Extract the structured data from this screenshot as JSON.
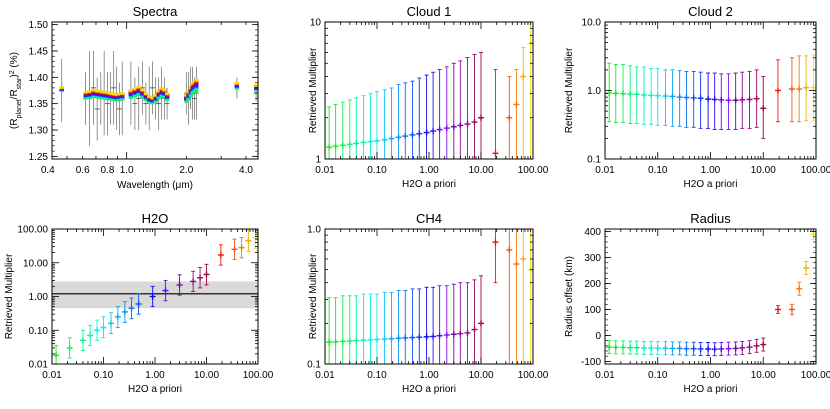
{
  "figure": {
    "colors": {
      "axis": "#000000",
      "gray_band": "#d9d9d9",
      "spectra_errbar": "#7a7a7a"
    }
  },
  "chart_data": [
    {
      "id": "spectra",
      "type": "scatter",
      "title": "Spectra",
      "xlabel_main": "Wavelength (",
      "xlabel_mu": "μ",
      "xlabel_end": "m)",
      "ylabel_parts": [
        "(R",
        "planet",
        "/R",
        "star",
        ")",
        "2",
        " (%)"
      ],
      "xscale": "log",
      "xlim": [
        0.42,
        4.6
      ],
      "ylim": [
        1.245,
        1.505
      ],
      "xticks": [
        {
          "v": 0.4,
          "label": "0.4"
        },
        {
          "v": 0.6,
          "label": "0.6"
        },
        {
          "v": 0.8,
          "label": "0.8"
        },
        {
          "v": 1.0,
          "label": "1.0"
        },
        {
          "v": 2.0,
          "label": "2.0"
        },
        {
          "v": 4.0,
          "label": "4.0"
        }
      ],
      "yticks": [
        {
          "v": 1.25,
          "label": "1.25"
        },
        {
          "v": 1.3,
          "label": "1.30"
        },
        {
          "v": 1.35,
          "label": "1.35"
        },
        {
          "v": 1.4,
          "label": "1.40"
        },
        {
          "v": 1.45,
          "label": "1.45"
        },
        {
          "v": 1.5,
          "label": "1.50"
        }
      ],
      "observed_points": [
        {
          "x": 0.47,
          "y": 1.375,
          "err": 0.06
        },
        {
          "x": 0.62,
          "y": 1.36,
          "err": 0.05
        },
        {
          "x": 0.65,
          "y": 1.36,
          "err": 0.09
        },
        {
          "x": 0.68,
          "y": 1.38,
          "err": 0.07
        },
        {
          "x": 0.71,
          "y": 1.34,
          "err": 0.06
        },
        {
          "x": 0.74,
          "y": 1.36,
          "err": 0.05
        },
        {
          "x": 0.77,
          "y": 1.37,
          "err": 0.08
        },
        {
          "x": 0.8,
          "y": 1.35,
          "err": 0.06
        },
        {
          "x": 0.83,
          "y": 1.36,
          "err": 0.05
        },
        {
          "x": 0.86,
          "y": 1.38,
          "err": 0.07
        },
        {
          "x": 0.89,
          "y": 1.36,
          "err": 0.06
        },
        {
          "x": 0.92,
          "y": 1.34,
          "err": 0.05
        },
        {
          "x": 0.95,
          "y": 1.36,
          "err": 0.07
        },
        {
          "x": 1.05,
          "y": 1.37,
          "err": 0.06
        },
        {
          "x": 1.1,
          "y": 1.35,
          "err": 0.05
        },
        {
          "x": 1.15,
          "y": 1.36,
          "err": 0.06
        },
        {
          "x": 1.2,
          "y": 1.38,
          "err": 0.05
        },
        {
          "x": 1.25,
          "y": 1.35,
          "err": 0.04
        },
        {
          "x": 1.3,
          "y": 1.36,
          "err": 0.06
        },
        {
          "x": 1.35,
          "y": 1.38,
          "err": 0.05
        },
        {
          "x": 1.4,
          "y": 1.36,
          "err": 0.04
        },
        {
          "x": 1.45,
          "y": 1.35,
          "err": 0.05
        },
        {
          "x": 1.5,
          "y": 1.37,
          "err": 0.05
        },
        {
          "x": 1.55,
          "y": 1.36,
          "err": 0.04
        },
        {
          "x": 1.6,
          "y": 1.35,
          "err": 0.03
        },
        {
          "x": 2.0,
          "y": 1.37,
          "err": 0.04
        },
        {
          "x": 2.05,
          "y": 1.36,
          "err": 0.05
        },
        {
          "x": 2.1,
          "y": 1.38,
          "err": 0.04
        },
        {
          "x": 2.15,
          "y": 1.37,
          "err": 0.05
        },
        {
          "x": 2.2,
          "y": 1.36,
          "err": 0.04
        },
        {
          "x": 2.25,
          "y": 1.37,
          "err": 0.05
        },
        {
          "x": 3.6,
          "y": 1.38,
          "err": 0.02
        },
        {
          "x": 4.5,
          "y": 1.37,
          "err": 0.015
        }
      ],
      "model_x": [
        0.47,
        0.62,
        0.65,
        0.68,
        0.71,
        0.74,
        0.77,
        0.8,
        0.83,
        0.86,
        0.89,
        0.92,
        0.95,
        1.05,
        1.1,
        1.15,
        1.2,
        1.25,
        1.3,
        1.35,
        1.4,
        1.45,
        1.5,
        1.55,
        1.6,
        2.0,
        2.05,
        2.1,
        2.15,
        2.2,
        2.25,
        3.6,
        4.5
      ],
      "model_base": [
        1.377,
        1.365,
        1.366,
        1.368,
        1.367,
        1.366,
        1.365,
        1.364,
        1.363,
        1.362,
        1.361,
        1.362,
        1.363,
        1.367,
        1.37,
        1.373,
        1.368,
        1.362,
        1.357,
        1.355,
        1.359,
        1.366,
        1.37,
        1.368,
        1.362,
        1.359,
        1.364,
        1.371,
        1.377,
        1.38,
        1.383,
        1.383,
        1.379
      ],
      "model_amp": [
        0.006,
        0.012,
        0.012,
        0.013,
        0.012,
        0.012,
        0.012,
        0.012,
        0.011,
        0.011,
        0.011,
        0.011,
        0.011,
        0.014,
        0.014,
        0.015,
        0.014,
        0.012,
        0.011,
        0.01,
        0.012,
        0.014,
        0.016,
        0.014,
        0.012,
        0.012,
        0.014,
        0.016,
        0.018,
        0.019,
        0.02,
        0.01,
        0.01
      ]
    },
    {
      "id": "cloud1",
      "type": "scatter",
      "title": "Cloud 1",
      "xlabel": "H2O a priori",
      "ylabel": "Retrieved Multiplier",
      "xscale": "log",
      "yscale": "log",
      "xlim": [
        0.01,
        100
      ],
      "ylim": [
        1,
        10
      ],
      "xticks": [
        {
          "v": 0.01,
          "label": "0.01"
        },
        {
          "v": 0.1,
          "label": "0.10"
        },
        {
          "v": 1,
          "label": "1.00"
        },
        {
          "v": 10,
          "label": "10.00"
        },
        {
          "v": 100,
          "label": "100.00"
        }
      ],
      "yticks": [
        {
          "v": 1,
          "label": "1"
        },
        {
          "v": 10,
          "label": "10"
        }
      ],
      "x": [
        0.012,
        0.016,
        0.022,
        0.03,
        0.04,
        0.055,
        0.075,
        0.1,
        0.14,
        0.19,
        0.26,
        0.35,
        0.48,
        0.65,
        0.9,
        1.2,
        1.6,
        2.2,
        3.0,
        4.0,
        5.5,
        7.5,
        10,
        14,
        19,
        26,
        35,
        48,
        65,
        90
      ],
      "y": [
        1.22,
        1.24,
        1.26,
        1.28,
        1.3,
        1.32,
        1.34,
        1.36,
        1.38,
        1.41,
        1.44,
        1.47,
        1.5,
        1.53,
        1.56,
        1.6,
        1.64,
        1.68,
        1.72,
        1.76,
        1.8,
        1.86,
        2.0,
        null,
        1.1,
        null,
        2.0,
        2.5,
        4.0,
        7.0
      ],
      "upper": [
        2.4,
        2.5,
        2.6,
        2.7,
        2.8,
        2.9,
        3.0,
        3.1,
        3.2,
        3.3,
        3.5,
        3.6,
        3.7,
        3.9,
        4.1,
        4.3,
        4.5,
        4.7,
        5.0,
        5.2,
        5.5,
        5.8,
        6.0,
        null,
        4.5,
        null,
        4.0,
        4.5,
        6.5,
        10.5
      ],
      "lower": [
        1.0,
        1.0,
        1.0,
        1.0,
        1.0,
        1.0,
        1.0,
        1.0,
        1.0,
        1.0,
        1.0,
        1.0,
        1.0,
        1.0,
        1.0,
        1.0,
        1.0,
        1.0,
        1.0,
        1.0,
        1.0,
        1.0,
        1.0,
        null,
        1.0,
        null,
        1.0,
        1.0,
        1.0,
        1.0
      ]
    },
    {
      "id": "cloud2",
      "type": "scatter",
      "title": "Cloud 2",
      "xlabel": "H2O a priori",
      "ylabel": "Retrieved Multiplier",
      "xscale": "log",
      "yscale": "log",
      "xlim": [
        0.01,
        100
      ],
      "ylim": [
        0.1,
        10
      ],
      "xticks": [
        {
          "v": 0.01,
          "label": "0.01"
        },
        {
          "v": 0.1,
          "label": "0.10"
        },
        {
          "v": 1,
          "label": "1.00"
        },
        {
          "v": 10,
          "label": "10.00"
        },
        {
          "v": 100,
          "label": "100.00"
        }
      ],
      "yticks": [
        {
          "v": 0.1,
          "label": "0.1"
        },
        {
          "v": 1,
          "label": "1.0"
        },
        {
          "v": 10,
          "label": "10.0"
        }
      ],
      "x": [
        0.012,
        0.016,
        0.022,
        0.03,
        0.04,
        0.055,
        0.075,
        0.1,
        0.14,
        0.19,
        0.26,
        0.35,
        0.48,
        0.65,
        0.9,
        1.2,
        1.6,
        2.2,
        3.0,
        4.0,
        5.5,
        7.5,
        10,
        14,
        19,
        26,
        35,
        48,
        65,
        90
      ],
      "y": [
        0.92,
        0.91,
        0.9,
        0.89,
        0.88,
        0.86,
        0.85,
        0.84,
        0.83,
        0.82,
        0.8,
        0.79,
        0.78,
        0.77,
        0.75,
        0.74,
        0.73,
        0.72,
        0.72,
        0.73,
        0.74,
        0.76,
        0.55,
        null,
        1.0,
        null,
        1.05,
        1.05,
        1.1,
        1.1
      ],
      "upper": [
        2.5,
        2.4,
        2.4,
        2.3,
        2.2,
        2.2,
        2.1,
        2.1,
        2.0,
        2.0,
        1.95,
        1.9,
        1.9,
        1.85,
        1.8,
        1.8,
        1.75,
        1.75,
        1.8,
        1.85,
        1.9,
        2.0,
        1.6,
        null,
        2.8,
        null,
        3.0,
        3.2,
        3.2,
        3.3
      ],
      "lower": [
        0.35,
        0.34,
        0.34,
        0.33,
        0.33,
        0.32,
        0.32,
        0.31,
        0.31,
        0.3,
        0.3,
        0.29,
        0.29,
        0.28,
        0.28,
        0.27,
        0.27,
        0.27,
        0.27,
        0.28,
        0.28,
        0.29,
        0.2,
        null,
        0.35,
        null,
        0.35,
        0.35,
        0.36,
        0.36
      ]
    },
    {
      "id": "h2o",
      "type": "scatter",
      "title": "H2O",
      "xlabel": "H2O a priori",
      "ylabel": "Retrieved Multiplier",
      "xscale": "log",
      "yscale": "log",
      "xlim": [
        0.01,
        100
      ],
      "ylim": [
        0.01,
        100
      ],
      "xticks": [
        {
          "v": 0.01,
          "label": "0.01"
        },
        {
          "v": 0.1,
          "label": "0.10"
        },
        {
          "v": 1,
          "label": "1.00"
        },
        {
          "v": 10,
          "label": "10.00"
        },
        {
          "v": 100,
          "label": "100.00"
        }
      ],
      "yticks": [
        {
          "v": 0.01,
          "label": "0.01"
        },
        {
          "v": 0.1,
          "label": "0.10"
        },
        {
          "v": 1,
          "label": "1.00"
        },
        {
          "v": 10,
          "label": "10.00"
        },
        {
          "v": 100,
          "label": "100.00"
        }
      ],
      "reference_line": 1.2,
      "band": [
        0.45,
        2.8
      ],
      "x": [
        0.012,
        0.016,
        0.022,
        0.03,
        0.04,
        0.055,
        0.075,
        0.1,
        0.14,
        0.19,
        0.26,
        0.35,
        0.48,
        0.65,
        0.9,
        1.2,
        1.6,
        2.2,
        3.0,
        4.0,
        5.5,
        7.5,
        10,
        14,
        19,
        26,
        35,
        48,
        65,
        90
      ],
      "y": [
        0.018,
        null,
        0.03,
        null,
        0.05,
        0.07,
        0.1,
        0.12,
        0.16,
        0.25,
        0.35,
        0.45,
        0.6,
        null,
        1.0,
        null,
        1.5,
        null,
        2.2,
        null,
        2.8,
        3.6,
        4.5,
        null,
        17,
        null,
        25,
        28,
        45,
        55
      ],
      "upper": [
        0.035,
        null,
        0.06,
        null,
        0.1,
        0.14,
        0.2,
        0.25,
        0.33,
        0.5,
        0.7,
        0.9,
        1.2,
        null,
        2.0,
        null,
        3.0,
        null,
        4.4,
        null,
        5.6,
        7.2,
        9.0,
        null,
        34,
        null,
        50,
        56,
        90,
        110
      ],
      "lower": [
        0.009,
        null,
        0.015,
        null,
        0.025,
        0.035,
        0.05,
        0.06,
        0.08,
        0.12,
        0.17,
        0.22,
        0.3,
        null,
        0.5,
        null,
        0.75,
        null,
        1.1,
        null,
        1.4,
        1.8,
        2.2,
        null,
        8.5,
        null,
        12.5,
        14,
        22,
        27
      ]
    },
    {
      "id": "ch4",
      "type": "scatter",
      "title": "CH4",
      "xlabel": "H2O a priori",
      "ylabel": "Retrieved Multiplier",
      "xscale": "log",
      "yscale": "log",
      "xlim": [
        0.01,
        100
      ],
      "ylim": [
        0.1,
        1
      ],
      "xticks": [
        {
          "v": 0.01,
          "label": "0.01"
        },
        {
          "v": 0.1,
          "label": "0.10"
        },
        {
          "v": 1,
          "label": "1.00"
        },
        {
          "v": 10,
          "label": "10.00"
        },
        {
          "v": 100,
          "label": "100.00"
        }
      ],
      "yticks": [
        {
          "v": 0.1,
          "label": "0.1"
        },
        {
          "v": 1,
          "label": "1.0"
        }
      ],
      "x": [
        0.012,
        0.016,
        0.022,
        0.03,
        0.04,
        0.055,
        0.075,
        0.1,
        0.14,
        0.19,
        0.26,
        0.35,
        0.48,
        0.65,
        0.9,
        1.2,
        1.6,
        2.2,
        3.0,
        4.0,
        5.5,
        7.5,
        10,
        14,
        19,
        26,
        35,
        48,
        65,
        90
      ],
      "y": [
        0.145,
        0.146,
        0.147,
        0.148,
        0.149,
        0.15,
        0.151,
        0.152,
        0.153,
        0.154,
        0.155,
        0.156,
        0.157,
        0.158,
        0.159,
        0.16,
        0.162,
        0.164,
        0.166,
        0.168,
        0.17,
        0.18,
        0.2,
        null,
        0.8,
        null,
        0.7,
        0.55,
        0.6,
        0.5
      ],
      "upper": [
        0.31,
        0.31,
        0.32,
        0.32,
        0.32,
        0.33,
        0.33,
        0.33,
        0.34,
        0.34,
        0.35,
        0.35,
        0.36,
        0.36,
        0.37,
        0.37,
        0.38,
        0.38,
        0.39,
        0.4,
        0.4,
        0.42,
        0.45,
        null,
        1.0,
        null,
        1.0,
        1.0,
        1.0,
        1.0
      ],
      "lower": [
        0.1,
        0.1,
        0.1,
        0.1,
        0.1,
        0.1,
        0.1,
        0.1,
        0.1,
        0.1,
        0.1,
        0.1,
        0.1,
        0.1,
        0.1,
        0.1,
        0.1,
        0.1,
        0.1,
        0.1,
        0.1,
        0.1,
        0.1,
        null,
        0.4,
        null,
        0.1,
        0.1,
        0.1,
        0.1
      ]
    },
    {
      "id": "radius",
      "type": "scatter",
      "title": "Radius",
      "xlabel": "H2O a priori",
      "ylabel": "Radius offset (km)",
      "xscale": "log",
      "yscale": "linear",
      "xlim": [
        0.01,
        100
      ],
      "ylim": [
        -110,
        410
      ],
      "xticks": [
        {
          "v": 0.01,
          "label": "0.01"
        },
        {
          "v": 0.1,
          "label": "0.10"
        },
        {
          "v": 1,
          "label": "1.00"
        },
        {
          "v": 10,
          "label": "10.00"
        },
        {
          "v": 100,
          "label": "100.00"
        }
      ],
      "yticks": [
        {
          "v": -100,
          "label": "-100"
        },
        {
          "v": 0,
          "label": "0"
        },
        {
          "v": 100,
          "label": "100"
        },
        {
          "v": 200,
          "label": "200"
        },
        {
          "v": 300,
          "label": "300"
        },
        {
          "v": 400,
          "label": "400"
        }
      ],
      "x": [
        0.012,
        0.016,
        0.022,
        0.03,
        0.04,
        0.055,
        0.075,
        0.1,
        0.14,
        0.19,
        0.26,
        0.35,
        0.48,
        0.65,
        0.9,
        1.2,
        1.6,
        2.2,
        3.0,
        4.0,
        5.5,
        7.5,
        10,
        14,
        19,
        26,
        35,
        48,
        65,
        90
      ],
      "y": [
        -45,
        -46,
        -46,
        -47,
        -47,
        -48,
        -48,
        -49,
        -49,
        -50,
        -50,
        -51,
        -51,
        -52,
        -52,
        -53,
        -52,
        -51,
        -50,
        -48,
        -45,
        -40,
        -35,
        null,
        100,
        null,
        100,
        180,
        260,
        390
      ],
      "upper": [
        -20,
        -21,
        -21,
        -22,
        -22,
        -23,
        -23,
        -24,
        -24,
        -25,
        -25,
        -26,
        -26,
        -27,
        -27,
        -28,
        -27,
        -26,
        -25,
        -23,
        -20,
        -15,
        -10,
        null,
        115,
        null,
        120,
        205,
        285,
        410
      ],
      "lower": [
        -70,
        -71,
        -71,
        -72,
        -72,
        -73,
        -73,
        -74,
        -74,
        -75,
        -75,
        -76,
        -76,
        -77,
        -77,
        -78,
        -77,
        -76,
        -75,
        -73,
        -70,
        -65,
        -60,
        null,
        85,
        null,
        80,
        155,
        235,
        370
      ]
    }
  ]
}
